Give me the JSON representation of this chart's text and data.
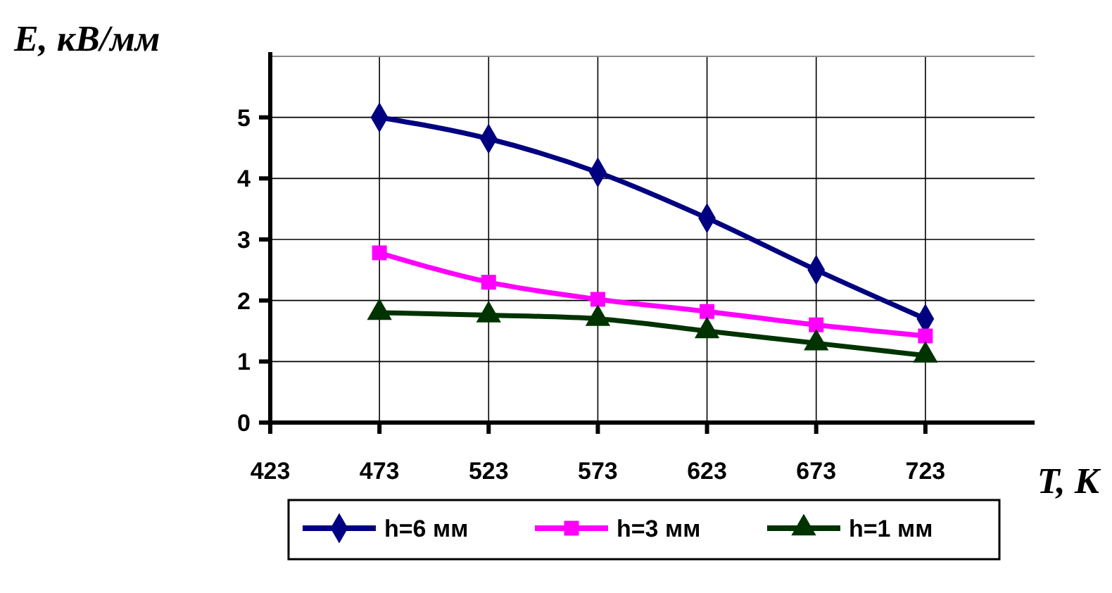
{
  "chart_data": {
    "type": "line",
    "xlabel": "T, К",
    "ylabel": "E, кВ/мм",
    "x": [
      473,
      523,
      573,
      623,
      673,
      723
    ],
    "xlim": [
      423,
      773
    ],
    "xticks": [
      423,
      473,
      523,
      573,
      623,
      673,
      723
    ],
    "ylim": [
      0,
      6
    ],
    "yticks": [
      0,
      1,
      2,
      3,
      4,
      5
    ],
    "grid": true,
    "legend": "bottom",
    "line_style": "solid",
    "series": [
      {
        "name": "h=6 мм",
        "color": "#000080",
        "marker": "diamond",
        "values": [
          5,
          4.65,
          4.1,
          3.35,
          2.5,
          1.7
        ]
      },
      {
        "name": "h=3 мм",
        "color": "#ff00ff",
        "marker": "square",
        "values": [
          2.78,
          2.3,
          2.02,
          1.82,
          1.6,
          1.42
        ]
      },
      {
        "name": "h=1 мм",
        "color": "#003300",
        "marker": "triangle",
        "values": [
          1.8,
          1.76,
          1.7,
          1.5,
          1.3,
          1.1
        ]
      }
    ]
  }
}
